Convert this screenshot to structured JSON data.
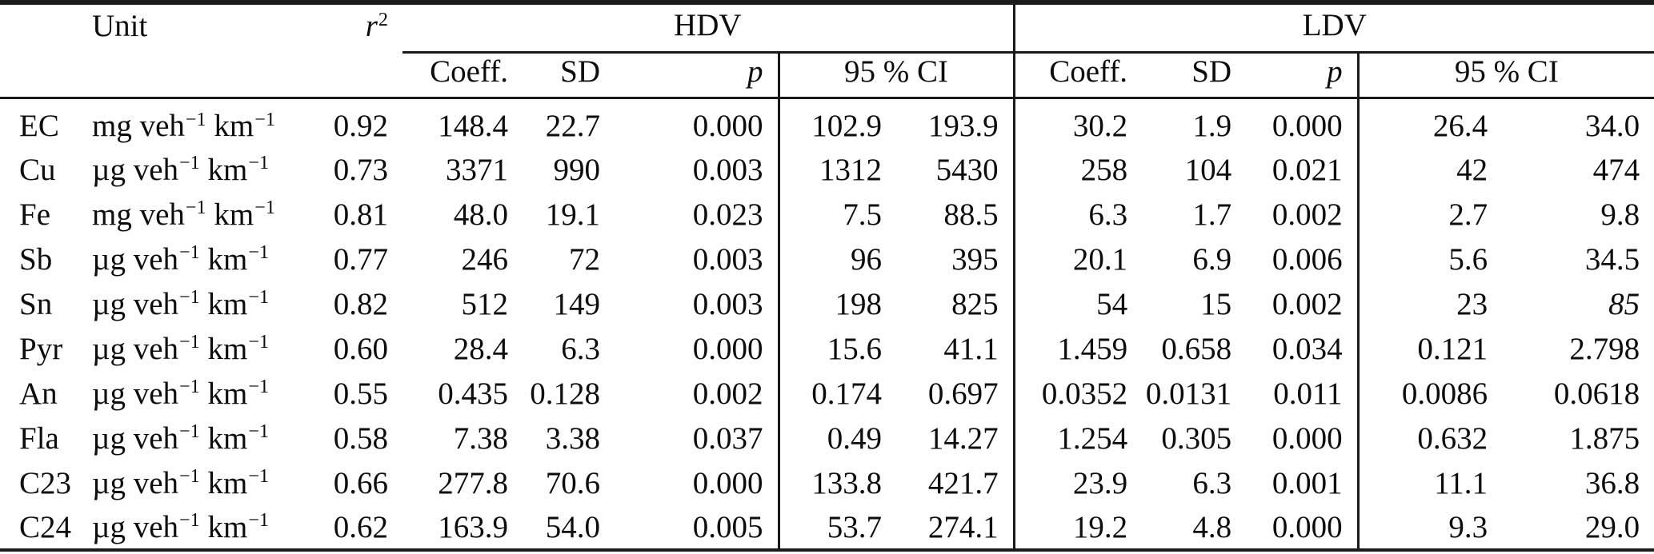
{
  "table": {
    "groups": {
      "hdv": "HDV",
      "ldv": "LDV"
    },
    "headers": {
      "unit": "Unit",
      "r2": {
        "base": "r",
        "exp": "2"
      },
      "coeff": "Coeff.",
      "sd": "SD",
      "p": "p",
      "ci": "95 % CI"
    },
    "unit_parts": {
      "base1": "veh",
      "exp1": "−1",
      "base2": "km",
      "exp2": "−1"
    },
    "rows": [
      {
        "species": "EC",
        "unit_prefix": "mg",
        "r2": "0.92",
        "hdv": {
          "coeff": "148.4",
          "sd": "22.7",
          "p": "0.000",
          "ci": [
            "102.9",
            "193.9"
          ]
        },
        "ldv": {
          "coeff": "30.2",
          "sd": "1.9",
          "p": "0.000",
          "ci": [
            "26.4",
            "34.0"
          ]
        }
      },
      {
        "species": "Cu",
        "unit_prefix": "µg",
        "r2": "0.73",
        "hdv": {
          "coeff": "3371",
          "sd": "990",
          "p": "0.003",
          "ci": [
            "1312",
            "5430"
          ]
        },
        "ldv": {
          "coeff": "258",
          "sd": "104",
          "p": "0.021",
          "ci": [
            "42",
            "474"
          ]
        }
      },
      {
        "species": "Fe",
        "unit_prefix": "mg",
        "r2": "0.81",
        "hdv": {
          "coeff": "48.0",
          "sd": "19.1",
          "p": "0.023",
          "ci": [
            "7.5",
            "88.5"
          ]
        },
        "ldv": {
          "coeff": "6.3",
          "sd": "1.7",
          "p": "0.002",
          "ci": [
            "2.7",
            "9.8"
          ]
        }
      },
      {
        "species": "Sb",
        "unit_prefix": "µg",
        "r2": "0.77",
        "hdv": {
          "coeff": "246",
          "sd": "72",
          "p": "0.003",
          "ci": [
            "96",
            "395"
          ]
        },
        "ldv": {
          "coeff": "20.1",
          "sd": "6.9",
          "p": "0.006",
          "ci": [
            "5.6",
            "34.5"
          ]
        }
      },
      {
        "species": "Sn",
        "unit_prefix": "µg",
        "r2": "0.82",
        "hdv": {
          "coeff": "512",
          "sd": "149",
          "p": "0.003",
          "ci": [
            "198",
            "825"
          ]
        },
        "ldv": {
          "coeff": "54",
          "sd": "15",
          "p": "0.002",
          "ci": [
            "23",
            "85"
          ],
          "ci_hi_italic": true
        }
      },
      {
        "species": "Pyr",
        "unit_prefix": "µg",
        "r2": "0.60",
        "hdv": {
          "coeff": "28.4",
          "sd": "6.3",
          "p": "0.000",
          "ci": [
            "15.6",
            "41.1"
          ]
        },
        "ldv": {
          "coeff": "1.459",
          "sd": "0.658",
          "p": "0.034",
          "ci": [
            "0.121",
            "2.798"
          ]
        }
      },
      {
        "species": "An",
        "unit_prefix": "µg",
        "r2": "0.55",
        "hdv": {
          "coeff": "0.435",
          "sd": "0.128",
          "p": "0.002",
          "ci": [
            "0.174",
            "0.697"
          ]
        },
        "ldv": {
          "coeff": "0.0352",
          "sd": "0.0131",
          "p": "0.011",
          "ci": [
            "0.0086",
            "0.0618"
          ]
        }
      },
      {
        "species": "Fla",
        "unit_prefix": "µg",
        "r2": "0.58",
        "hdv": {
          "coeff": "7.38",
          "sd": "3.38",
          "p": "0.037",
          "ci": [
            "0.49",
            "14.27"
          ]
        },
        "ldv": {
          "coeff": "1.254",
          "sd": "0.305",
          "p": "0.000",
          "ci": [
            "0.632",
            "1.875"
          ]
        }
      },
      {
        "species": "C23",
        "unit_prefix": "µg",
        "r2": "0.66",
        "hdv": {
          "coeff": "277.8",
          "sd": "70.6",
          "p": "0.000",
          "ci": [
            "133.8",
            "421.7"
          ]
        },
        "ldv": {
          "coeff": "23.9",
          "sd": "6.3",
          "p": "0.001",
          "ci": [
            "11.1",
            "36.8"
          ]
        }
      },
      {
        "species": "C24",
        "unit_prefix": "µg",
        "r2": "0.62",
        "hdv": {
          "coeff": "163.9",
          "sd": "54.0",
          "p": "0.005",
          "ci": [
            "53.7",
            "274.1"
          ]
        },
        "ldv": {
          "coeff": "19.2",
          "sd": "4.8",
          "p": "0.000",
          "ci": [
            "9.3",
            "29.0"
          ]
        }
      }
    ]
  }
}
